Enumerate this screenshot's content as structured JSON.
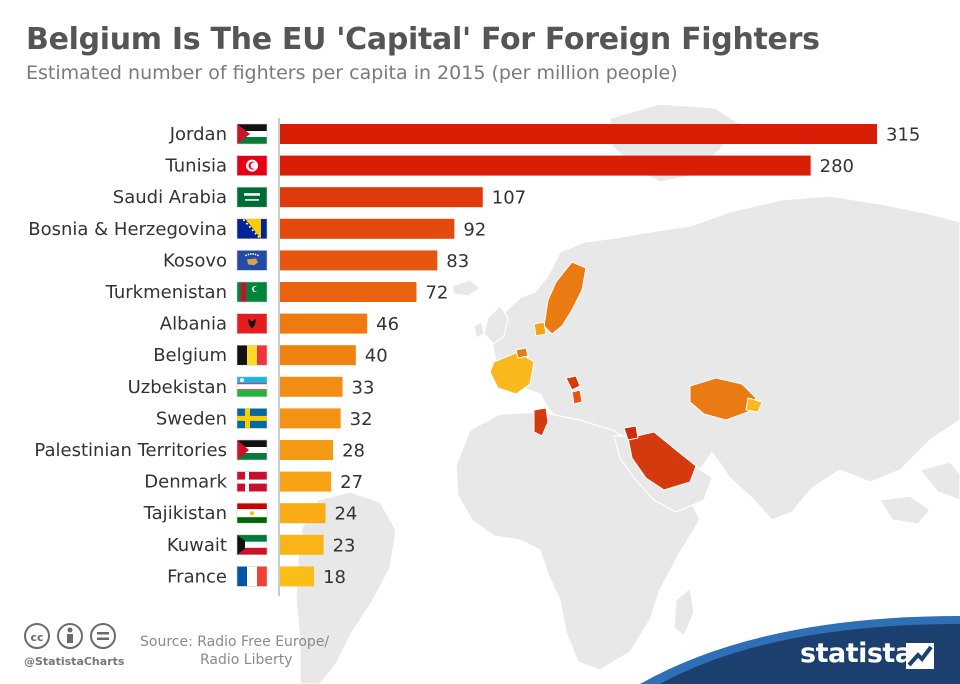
{
  "header": {
    "title": "Belgium Is The EU 'Capital' For Foreign Fighters",
    "subtitle": "Estimated number of fighters per capita in 2015 (per million people)"
  },
  "chart_data": {
    "type": "bar",
    "orientation": "horizontal",
    "title": "Belgium Is The EU 'Capital' For Foreign Fighters",
    "subtitle": "Estimated number of fighters per capita in 2015 (per million people)",
    "categories": [
      "Jordan",
      "Tunisia",
      "Saudi Arabia",
      "Bosnia & Herzegovina",
      "Kosovo",
      "Turkmenistan",
      "Albania",
      "Belgium",
      "Uzbekistan",
      "Sweden",
      "Palestinian Territories",
      "Denmark",
      "Tajikistan",
      "Kuwait",
      "France"
    ],
    "values": [
      315,
      280,
      107,
      92,
      83,
      72,
      46,
      40,
      33,
      32,
      28,
      27,
      24,
      23,
      18
    ],
    "flag_icons": [
      "jordan-flag-icon",
      "tunisia-flag-icon",
      "saudi-arabia-flag-icon",
      "bosnia-herzegovina-flag-icon",
      "kosovo-flag-icon",
      "turkmenistan-flag-icon",
      "albania-flag-icon",
      "belgium-flag-icon",
      "uzbekistan-flag-icon",
      "sweden-flag-icon",
      "palestinian-territories-flag-icon",
      "denmark-flag-icon",
      "tajikistan-flag-icon",
      "kuwait-flag-icon",
      "france-flag-icon"
    ],
    "bar_colors": [
      "#d81e05",
      "#d81e05",
      "#e03a0a",
      "#e34a0c",
      "#e6560e",
      "#e9630f",
      "#ee7a10",
      "#f08212",
      "#f28d13",
      "#f39214",
      "#f49a15",
      "#f6a315",
      "#f8ac16",
      "#f9b517",
      "#fbbd18"
    ],
    "xlabel": "",
    "ylabel": "",
    "xlim": [
      0,
      315
    ],
    "grid": false,
    "legend": "none"
  },
  "background_map": {
    "icon": "world-map-icon",
    "highlight_colors": {
      "high": "#d43a0e",
      "mid": "#ea7a12",
      "low": "#f9b81b"
    }
  },
  "footer": {
    "license_icons": [
      "creative-commons-icon",
      "attribution-icon",
      "no-derivatives-icon"
    ],
    "handle": "@StatistaCharts",
    "source_line1": "Source: Radio Free Europe/",
    "source_line2": "Radio Liberty",
    "brand": "statista",
    "brand_color": "#1b3f6e",
    "brand_accent": "#2f6fb5"
  }
}
